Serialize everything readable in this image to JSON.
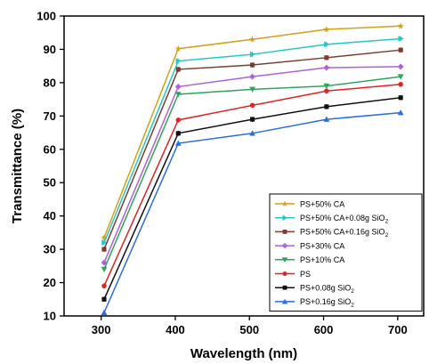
{
  "chart_data": {
    "type": "line",
    "xlabel": "Wavelength (nm)",
    "ylabel": "Transmittance (%)",
    "xlim": [
      250,
      735
    ],
    "ylim": [
      10,
      100
    ],
    "x_ticks": [
      "300",
      "400",
      "500",
      "600",
      "700"
    ],
    "y_ticks": [
      "10",
      "20",
      "30",
      "40",
      "50",
      "60",
      "70",
      "80",
      "90",
      "100"
    ],
    "x": [
      304,
      404,
      504,
      604,
      704
    ],
    "legend_position": "bottom-right",
    "series": [
      {
        "name": "PS+50% CA",
        "label_main": "PS+50% CA",
        "label_sub": "",
        "label_tail": "",
        "color": "#d4a017",
        "marker": "star",
        "values": [
          33.5,
          90.2,
          93.0,
          96.0,
          97.0
        ]
      },
      {
        "name": "PS+50% CA+0.08g SiO2",
        "label_main": "PS+50% CA+0.08g SiO",
        "label_sub": "2",
        "label_tail": "",
        "color": "#22c7c7",
        "marker": "triangle-right",
        "values": [
          32.0,
          86.5,
          88.5,
          91.5,
          93.2
        ]
      },
      {
        "name": "PS+50% CA+0.16g SiO2",
        "label_main": "PS+50% CA+0.16g SiO",
        "label_sub": "2",
        "label_tail": "",
        "color": "#7b3d32",
        "marker": "square",
        "values": [
          30.0,
          84.0,
          85.3,
          87.5,
          89.8
        ]
      },
      {
        "name": "PS+30% CA",
        "label_main": "PS+30% CA",
        "label_sub": "",
        "label_tail": "",
        "color": "#b060d8",
        "marker": "diamond",
        "values": [
          26.0,
          78.8,
          81.8,
          84.5,
          84.8
        ]
      },
      {
        "name": "PS+10% CA",
        "label_main": "PS+10% CA",
        "label_sub": "",
        "label_tail": "",
        "color": "#2ea55a",
        "marker": "triangle-down",
        "values": [
          24.0,
          76.5,
          78.0,
          79.0,
          81.8
        ]
      },
      {
        "name": "PS",
        "label_main": "PS",
        "label_sub": "",
        "label_tail": "",
        "color": "#e32222",
        "marker": "circle",
        "values": [
          19.0,
          68.8,
          73.2,
          77.5,
          79.5
        ]
      },
      {
        "name": "PS+0.08g SiO2",
        "label_main": "PS+0.08g SiO",
        "label_sub": "2",
        "label_tail": "",
        "color": "#111111",
        "marker": "square",
        "values": [
          15.0,
          64.8,
          69.0,
          72.8,
          75.5
        ]
      },
      {
        "name": "PS+0.16g SiO2",
        "label_main": "PS+0.16g SiO",
        "label_sub": "2",
        "label_tail": "",
        "color": "#2a6fdc",
        "marker": "triangle-up",
        "values": [
          11.0,
          61.8,
          64.8,
          69.0,
          71.0
        ]
      }
    ]
  }
}
